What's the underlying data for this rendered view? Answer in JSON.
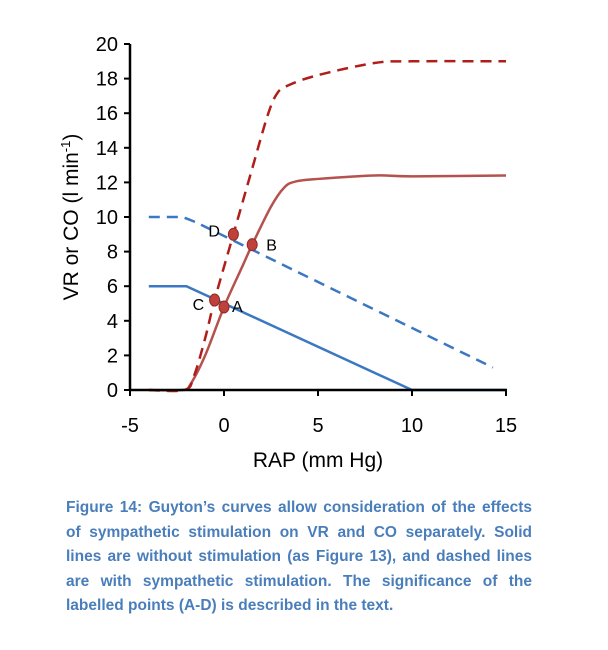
{
  "chart_data": {
    "type": "line",
    "xlabel": "RAP (mm Hg)",
    "ylabel": "VR or CO (l min",
    "ylabel_sup": "-1",
    "ylabel_close": ")",
    "xlim": [
      -5,
      15
    ],
    "ylim": [
      0,
      20
    ],
    "xticks": [
      -5,
      0,
      5,
      10,
      15
    ],
    "yticks": [
      0,
      2,
      4,
      6,
      8,
      10,
      12,
      14,
      16,
      18,
      20
    ],
    "grid": false,
    "series": [
      {
        "name": "VR without stimulation",
        "color": "#3a78c3",
        "dashed": false,
        "x": [
          -4,
          -2,
          10,
          15
        ],
        "y": [
          6,
          6,
          0,
          0
        ]
      },
      {
        "name": "VR with sympathetic stimulation",
        "color": "#3a78c3",
        "dashed": true,
        "x": [
          -4,
          -2.2,
          -1.5,
          14.3
        ],
        "y": [
          10,
          10,
          9.7,
          1.3
        ]
      },
      {
        "name": "CO without stimulation",
        "color": "#b5524e",
        "dashed": false,
        "x": [
          -4,
          -2.2,
          -1.8,
          -1,
          0,
          1,
          1.5,
          2.5,
          3.2,
          3.8,
          5,
          8,
          10,
          15
        ],
        "y": [
          0,
          0,
          0.3,
          2,
          4.8,
          7.2,
          8.4,
          10.6,
          11.7,
          12.05,
          12.2,
          12.4,
          12.35,
          12.4
        ]
      },
      {
        "name": "CO with sympathetic stimulation",
        "color": "#b01e1a",
        "dashed": true,
        "x": [
          -4,
          -2.1,
          -1.6,
          -1,
          -0.5,
          0.5,
          1.5,
          2.3,
          2.8,
          3.4,
          5,
          8,
          10,
          15
        ],
        "y": [
          0,
          0,
          0.8,
          3,
          5.2,
          9,
          12.8,
          15.8,
          17.1,
          17.6,
          18.2,
          18.9,
          19,
          19
        ]
      }
    ],
    "points": [
      {
        "label": "A",
        "x": 0,
        "y": 4.8
      },
      {
        "label": "B",
        "x": 1.5,
        "y": 8.4
      },
      {
        "label": "C",
        "x": -0.5,
        "y": 5.2
      },
      {
        "label": "D",
        "x": 0.5,
        "y": 9
      }
    ]
  },
  "caption": {
    "figure": "Figure 14",
    "text": ": Guyton’s curves allow consideration of the effects of sympathetic stimulation on VR and CO separately. Solid lines are without stimulation (as Figure 13), and dashed lines are with sympathetic stimulation. The significance of the labelled points (A-D) is described in the text."
  }
}
